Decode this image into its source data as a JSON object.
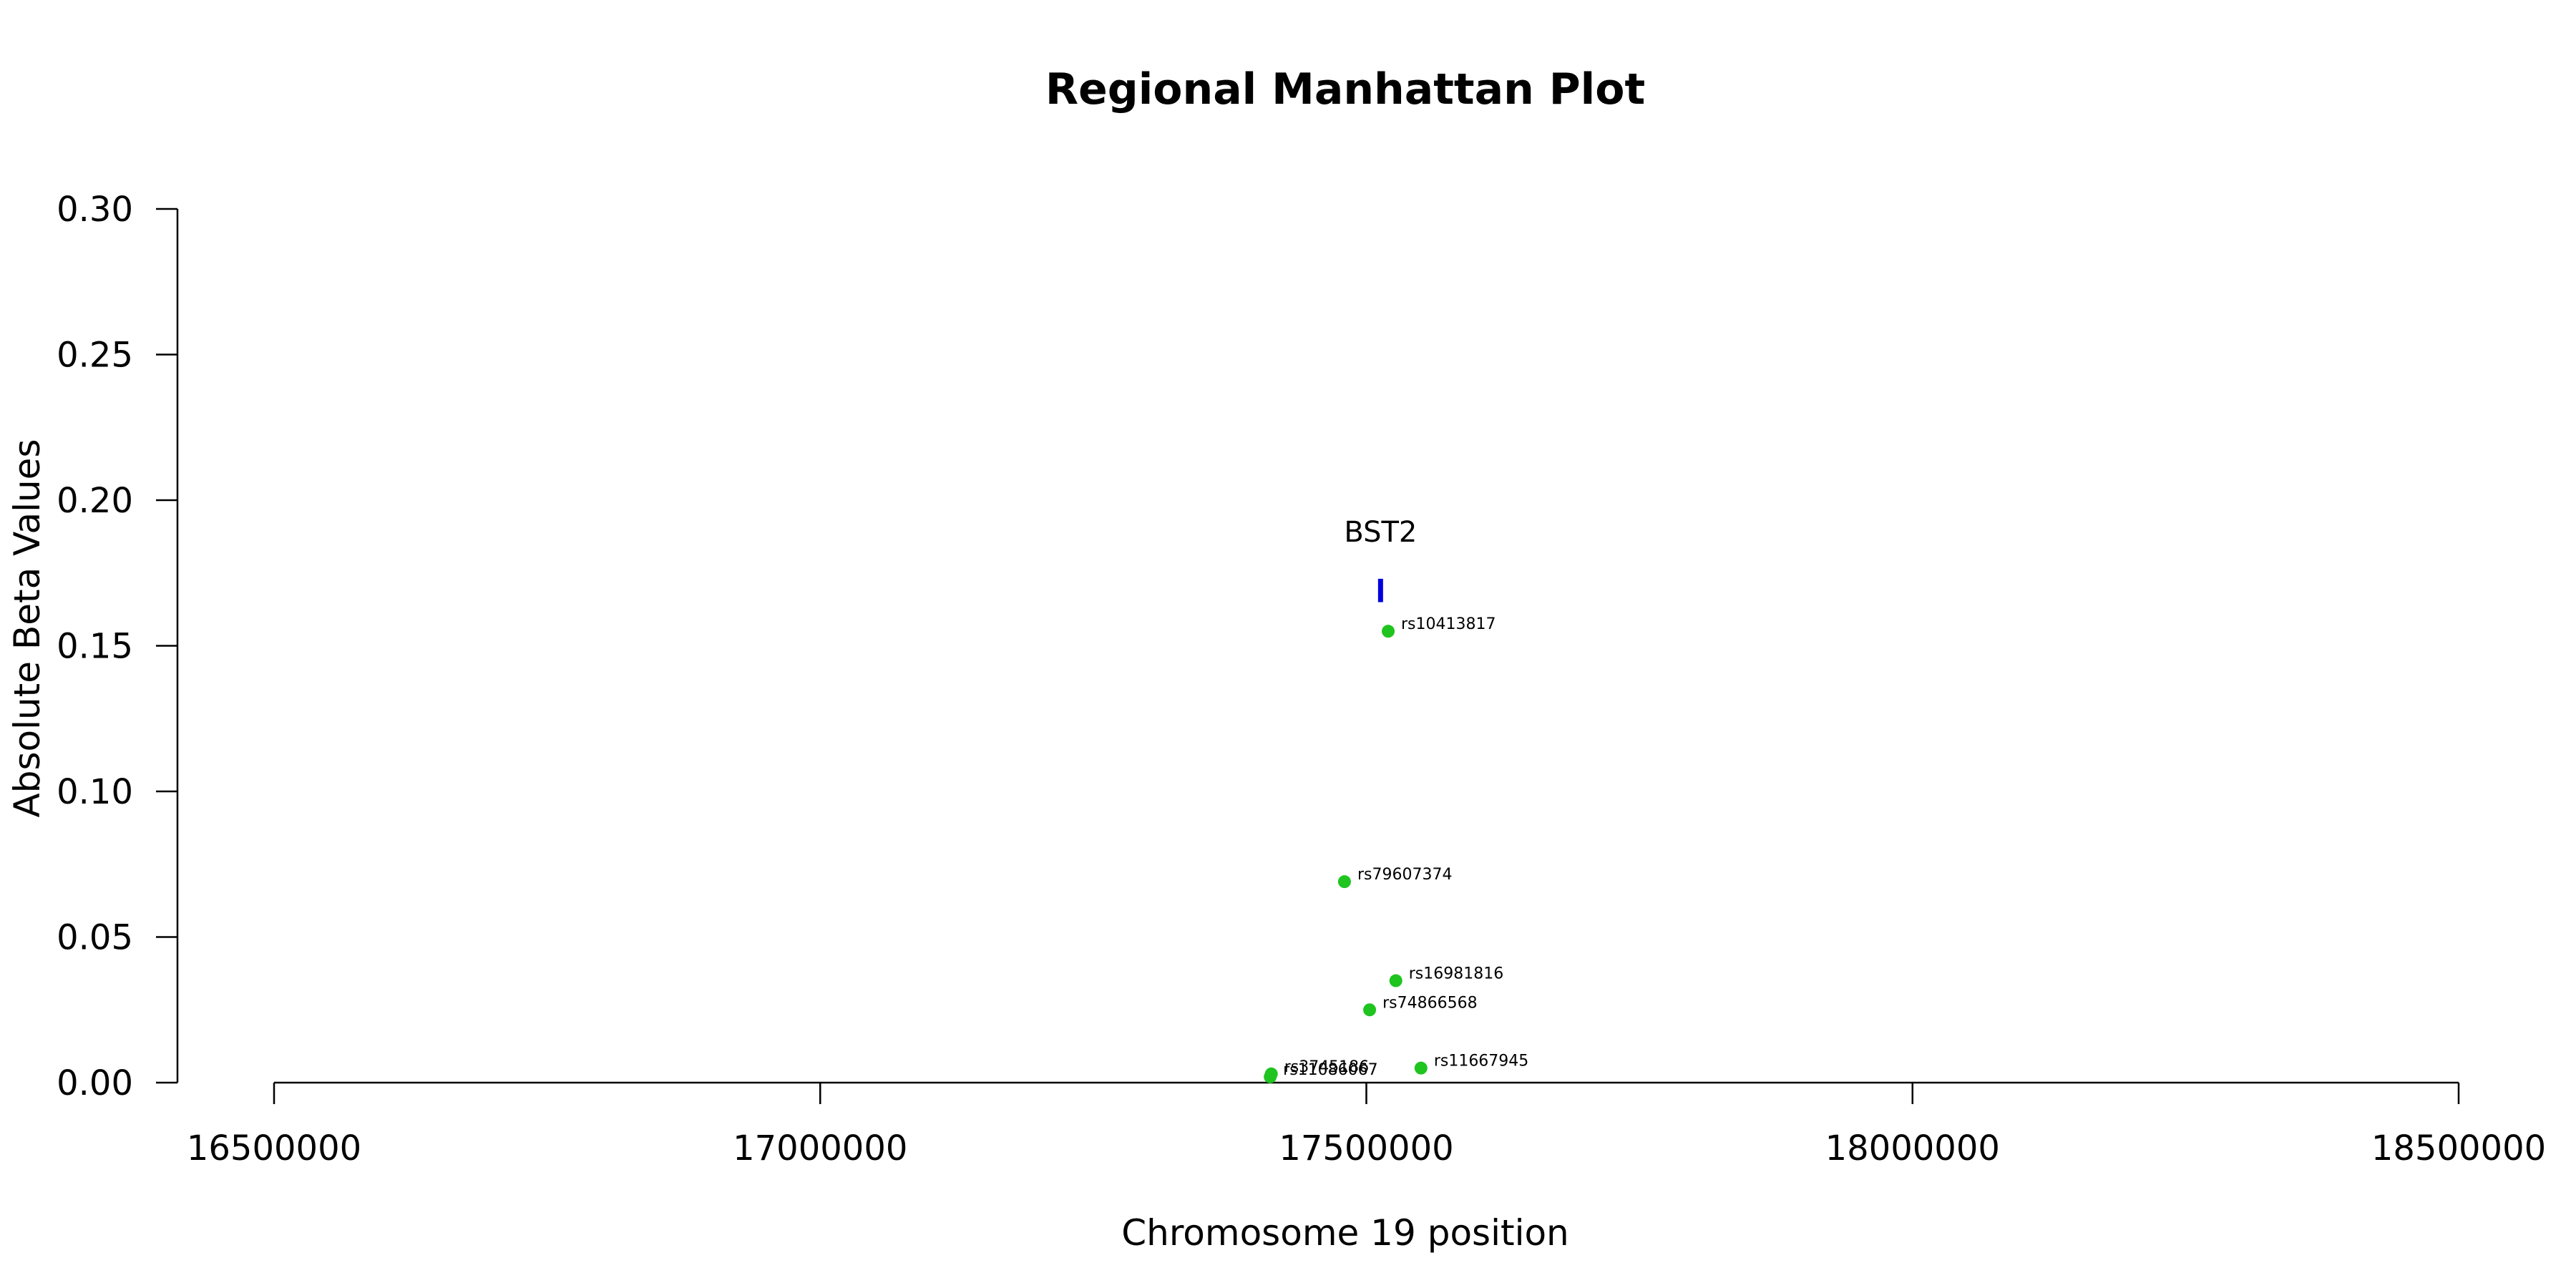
{
  "chart_data": {
    "type": "scatter",
    "title": "Regional Manhattan Plot",
    "xlabel": "Chromosome 19 position",
    "ylabel": "Absolute Beta Values",
    "xlim": [
      16500000,
      18500000
    ],
    "ylim": [
      0,
      0.3
    ],
    "x_ticks": [
      16500000,
      17000000,
      17500000,
      18000000,
      18500000
    ],
    "y_ticks": [
      0.0,
      0.05,
      0.1,
      0.15,
      0.2,
      0.25,
      0.3
    ],
    "x_tick_labels": [
      "16500000",
      "17000000",
      "17500000",
      "18000000",
      "18500000"
    ],
    "y_tick_labels": [
      "0.00",
      "0.05",
      "0.10",
      "0.15",
      "0.20",
      "0.25",
      "0.30"
    ],
    "grid": false,
    "point_color": "#1fc41f",
    "gene_color": "#0000dd",
    "points": [
      {
        "x": 17520000,
        "y": 0.155,
        "label": "rs10413817"
      },
      {
        "x": 17480000,
        "y": 0.069,
        "label": "rs79607374"
      },
      {
        "x": 17527000,
        "y": 0.035,
        "label": "rs16981816"
      },
      {
        "x": 17503000,
        "y": 0.025,
        "label": "rs74866568"
      },
      {
        "x": 17550000,
        "y": 0.005,
        "label": "rs11667945"
      },
      {
        "x": 17413000,
        "y": 0.003,
        "label": "rs3745186"
      },
      {
        "x": 17412000,
        "y": 0.002,
        "label": "rs11086067"
      }
    ],
    "genes": [
      {
        "x": 17513000,
        "y_low": 0.165,
        "y_high": 0.173,
        "label": "BST2"
      }
    ]
  }
}
